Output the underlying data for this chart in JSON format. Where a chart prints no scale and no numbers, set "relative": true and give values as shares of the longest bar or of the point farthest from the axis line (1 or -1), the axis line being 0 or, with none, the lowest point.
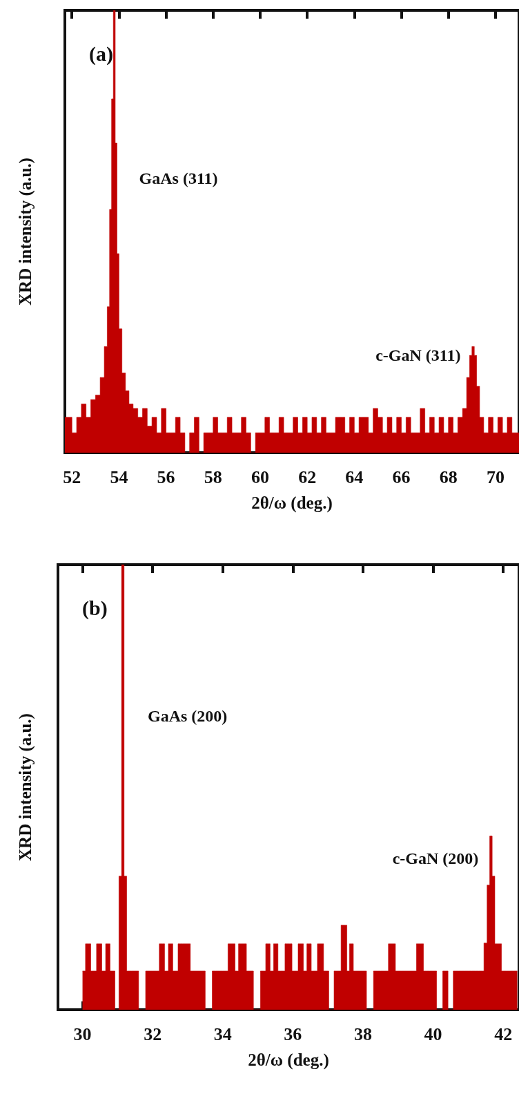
{
  "chart_data": [
    {
      "type": "area",
      "title": "(a)",
      "xlabel": "2θ/ω (deg.)",
      "ylabel": "XRD intensity (a.u.)",
      "relative": true,
      "tick_labels": "x",
      "xlim": [
        51.7,
        71
      ],
      "xticks": [
        52,
        54,
        56,
        58,
        60,
        62,
        64,
        66,
        68,
        70
      ],
      "annotations": [
        {
          "text": "GaAs (311)",
          "x": 53.8,
          "y": 0.62
        },
        {
          "text": "c-GaN (311)",
          "x": 69.05,
          "y": 0.22
        }
      ],
      "series": [
        {
          "color": "#c00000",
          "x": [
            51.7,
            51.9,
            52.1,
            52.3,
            52.5,
            52.7,
            52.9,
            53.1,
            53.3,
            53.45,
            53.55,
            53.65,
            53.72,
            53.8,
            53.88,
            53.95,
            54.05,
            54.2,
            54.35,
            54.5,
            54.7,
            54.9,
            55.1,
            55.3,
            55.5,
            55.7,
            55.9,
            56.1,
            56.3,
            56.5,
            56.7,
            56.9,
            57.1,
            57.3,
            57.5,
            57.7,
            57.9,
            58.1,
            58.3,
            58.5,
            58.7,
            58.9,
            59.1,
            59.3,
            59.5,
            59.7,
            59.9,
            60.1,
            60.3,
            60.5,
            60.7,
            60.9,
            61.1,
            61.3,
            61.5,
            61.7,
            61.9,
            62.1,
            62.3,
            62.5,
            62.7,
            62.9,
            63.1,
            63.3,
            63.5,
            63.7,
            63.9,
            64.1,
            64.3,
            64.5,
            64.7,
            64.9,
            65.1,
            65.3,
            65.5,
            65.7,
            65.9,
            66.1,
            66.3,
            66.5,
            66.7,
            66.9,
            67.1,
            67.3,
            67.5,
            67.7,
            67.9,
            68.1,
            68.3,
            68.5,
            68.7,
            68.85,
            68.95,
            69.05,
            69.15,
            69.25,
            69.4,
            69.6,
            69.8,
            70.0,
            70.2,
            70.4,
            70.6,
            70.8,
            71.0
          ],
          "values": [
            0.08,
            0.08,
            0.045,
            0.08,
            0.11,
            0.08,
            0.12,
            0.13,
            0.17,
            0.24,
            0.33,
            0.55,
            0.8,
            1,
            0.7,
            0.45,
            0.28,
            0.18,
            0.14,
            0.11,
            0.1,
            0.08,
            0.1,
            0.06,
            0.08,
            0.045,
            0.1,
            0.045,
            0.045,
            0.08,
            0.045,
            0,
            0.045,
            0.08,
            0,
            0.045,
            0.045,
            0.08,
            0.045,
            0.045,
            0.08,
            0.045,
            0.045,
            0.08,
            0.045,
            0,
            0.045,
            0.045,
            0.08,
            0.045,
            0.045,
            0.08,
            0.045,
            0.045,
            0.08,
            0.045,
            0.08,
            0.045,
            0.08,
            0.045,
            0.08,
            0.045,
            0.045,
            0.08,
            0.08,
            0.045,
            0.08,
            0.045,
            0.08,
            0.08,
            0.045,
            0.1,
            0.08,
            0.045,
            0.08,
            0.045,
            0.08,
            0.045,
            0.08,
            0.045,
            0.045,
            0.1,
            0.045,
            0.08,
            0.045,
            0.08,
            0.045,
            0.08,
            0.045,
            0.08,
            0.1,
            0.17,
            0.22,
            0.24,
            0.22,
            0.15,
            0.08,
            0.045,
            0.08,
            0.045,
            0.08,
            0.045,
            0.08,
            0.045,
            0.045
          ]
        }
      ]
    },
    {
      "type": "area",
      "title": "(b)",
      "xlabel": "2θ/ω (deg.)",
      "ylabel": "XRD intensity (a.u.)",
      "relative": true,
      "tick_labels": "x",
      "xlim": [
        29.3,
        42.45
      ],
      "xticks": [
        30,
        32,
        34,
        36,
        38,
        40,
        42
      ],
      "annotations": [
        {
          "text": "GaAs (200)",
          "x": 31.15,
          "y": 0.66
        },
        {
          "text": "c-GaN (200)",
          "x": 41.65,
          "y": 0.34
        }
      ],
      "series": [
        {
          "color": "#c00000",
          "x": [
            30.0,
            30.17,
            30.3,
            30.5,
            30.6,
            30.72,
            30.85,
            31.0,
            31.08,
            31.15,
            31.22,
            31.3,
            31.5,
            31.7,
            31.9,
            32.1,
            32.28,
            32.4,
            32.5,
            32.65,
            32.8,
            32.9,
            33.0,
            33.15,
            33.4,
            33.6,
            33.8,
            34.0,
            34.3,
            34.4,
            34.5,
            34.6,
            34.75,
            35.0,
            35.15,
            35.3,
            35.4,
            35.5,
            35.65,
            35.9,
            36.05,
            36.25,
            36.35,
            36.45,
            36.6,
            36.8,
            36.95,
            37.1,
            37.25,
            37.5,
            37.58,
            37.65,
            37.8,
            38.0,
            38.2,
            38.4,
            38.6,
            38.85,
            39.0,
            39.2,
            39.4,
            39.65,
            39.8,
            40.0,
            40.2,
            40.35,
            40.5,
            40.65,
            40.8,
            41.0,
            41.2,
            41.4,
            41.5,
            41.58,
            41.65,
            41.72,
            41.8,
            41.9,
            42.0,
            42.2,
            42.4
          ],
          "values": [
            0.087,
            0.148,
            0.087,
            0.148,
            0.087,
            0.148,
            0.087,
            0,
            0.3,
            1,
            0.3,
            0.087,
            0.087,
            0,
            0.087,
            0.087,
            0.148,
            0.087,
            0.148,
            0.087,
            0.148,
            0.148,
            0.148,
            0.087,
            0.087,
            0,
            0.087,
            0.087,
            0.148,
            0.087,
            0.148,
            0.148,
            0.087,
            0,
            0.087,
            0.148,
            0.087,
            0.148,
            0.087,
            0.148,
            0.087,
            0.148,
            0.087,
            0.148,
            0.087,
            0.148,
            0.087,
            0,
            0.087,
            0.19,
            0.087,
            0.148,
            0.087,
            0.087,
            0,
            0.087,
            0.087,
            0.148,
            0.087,
            0.087,
            0.087,
            0.148,
            0.087,
            0.087,
            0,
            0.087,
            0,
            0.087,
            0.087,
            0.087,
            0.087,
            0.087,
            0.15,
            0.28,
            0.39,
            0.3,
            0.148,
            0.148,
            0.087,
            0.087,
            0.087
          ]
        }
      ]
    }
  ]
}
